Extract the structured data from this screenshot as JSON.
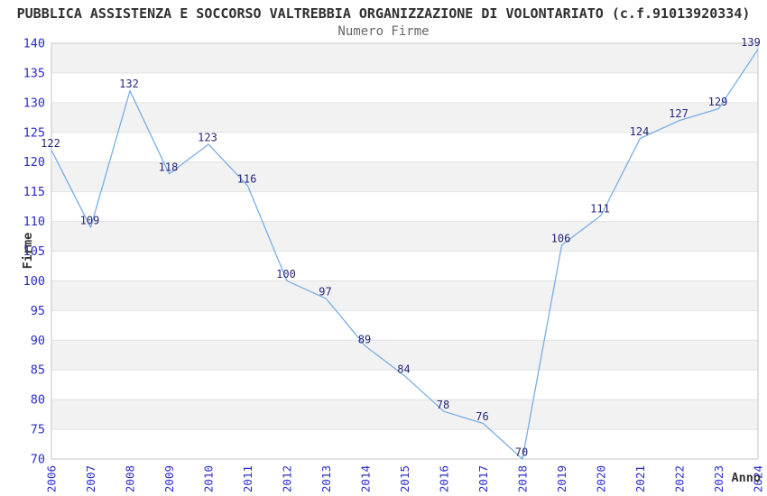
{
  "chart_data": {
    "type": "line",
    "title": "PUBBLICA ASSISTENZA E SOCCORSO VALTREBBIA ORGANIZZAZIONE DI VOLONTARIATO (c.f.91013920334)",
    "subtitle": "Numero Firme",
    "xlabel": "Anno",
    "ylabel": "Firme",
    "categories": [
      "2006",
      "2007",
      "2008",
      "2009",
      "2010",
      "2011",
      "2012",
      "2013",
      "2014",
      "2015",
      "2016",
      "2017",
      "2018",
      "2019",
      "2020",
      "2021",
      "2022",
      "2023",
      "2024"
    ],
    "series": [
      {
        "name": "Numero Firme",
        "values": [
          122,
          109,
          132,
          118,
          123,
          116,
          100,
          97,
          89,
          84,
          78,
          76,
          70,
          106,
          111,
          124,
          127,
          129,
          139
        ]
      }
    ],
    "ylim": [
      70,
      140
    ],
    "ytick_step": 5,
    "grid": true,
    "banded_background": true,
    "point_labels": true,
    "legend_position": "none",
    "colors": {
      "line": "#79aee3",
      "tick_label": "#2b2bcc",
      "point_label": "#26267a",
      "band": "#f2f2f2",
      "grid": "#e2e2e2",
      "border": "#c6c6c6",
      "title": "#2f2f2f",
      "subtitle": "#666666",
      "axis_title": "#333333",
      "background": "#ffffff"
    }
  }
}
